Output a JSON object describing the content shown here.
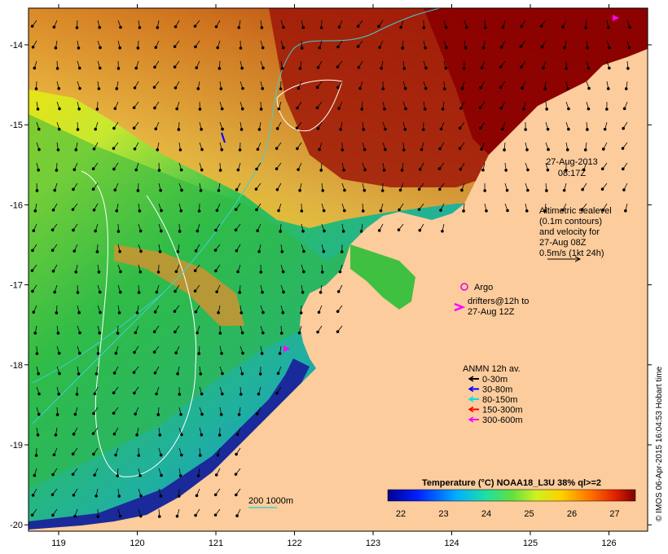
{
  "map": {
    "datetime_line1": "27-Aug-2013",
    "datetime_line2": "08:17Z",
    "altimetry_lines": [
      "Altimetric sealevel",
      "(0.1m contours)",
      "and velocity for",
      "27-Aug 08Z",
      "0.5m/s (1kt 24h)"
    ],
    "argo_label": "Argo",
    "drifters_line1": "drifters@12h to",
    "drifters_line2": "27-Aug 12Z",
    "anmn_title": "ANMN 12h av.",
    "anmn_items": [
      {
        "label": "0-30m",
        "color": "#000000"
      },
      {
        "label": "30-80m",
        "color": "#0000ff"
      },
      {
        "label": "80-150m",
        "color": "#00e0e0"
      },
      {
        "label": "150-300m",
        "color": "#ff0000"
      },
      {
        "label": "300-600m",
        "color": "#ff00ff"
      }
    ],
    "depth_label": "200  1000m",
    "colorbar_title": "Temperature (°C) NOAA18_L3U 38% ql>=2",
    "colorbar_ticks": [
      "22",
      "23",
      "24",
      "25",
      "26",
      "27"
    ],
    "lon_ticks": [
      "119",
      "120",
      "121",
      "122",
      "123",
      "124",
      "125",
      "126"
    ],
    "lat_ticks": [
      "-14",
      "-15",
      "-16",
      "-17",
      "-18",
      "-19",
      "-20"
    ],
    "credit": "© IMOS 06-Apr-2015 16:04:53 Hobart time",
    "colors": {
      "land": "#fccc9c",
      "argo": "#e000e0",
      "drifter": "#ff00ff",
      "contour": "#ffffff",
      "depth_contour": "#40d0d0"
    }
  }
}
